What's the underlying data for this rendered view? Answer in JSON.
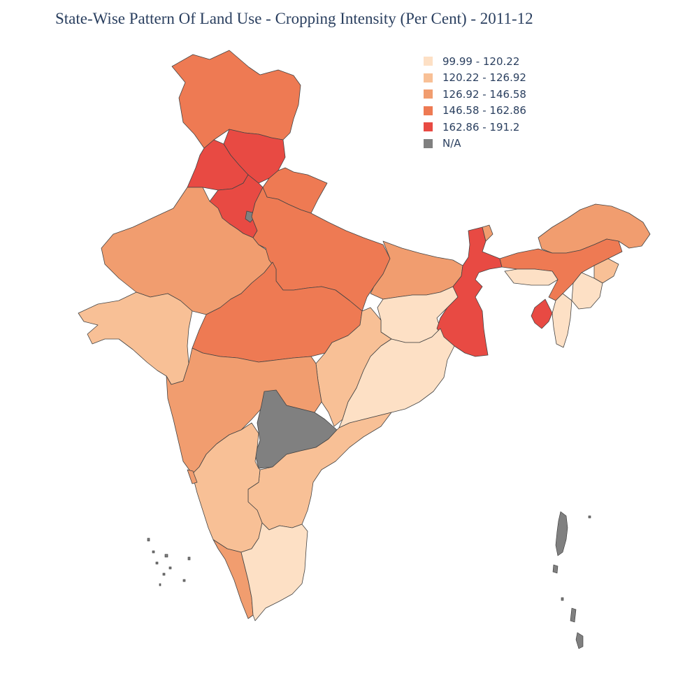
{
  "title": "State-Wise Pattern Of Land Use - Cropping Intensity (Per Cent) - 2011-12",
  "legend": [
    {
      "label": "99.99 - 120.22",
      "color": "#fde0c5"
    },
    {
      "label": "120.22 - 126.92",
      "color": "#f8c096"
    },
    {
      "label": "126.92 - 146.58",
      "color": "#f19d6f"
    },
    {
      "label": "146.58 - 162.86",
      "color": "#ee7a53"
    },
    {
      "label": "162.86 - 191.2",
      "color": "#e84a43"
    },
    {
      "label": "N/A",
      "color": "#808080"
    }
  ]
}
